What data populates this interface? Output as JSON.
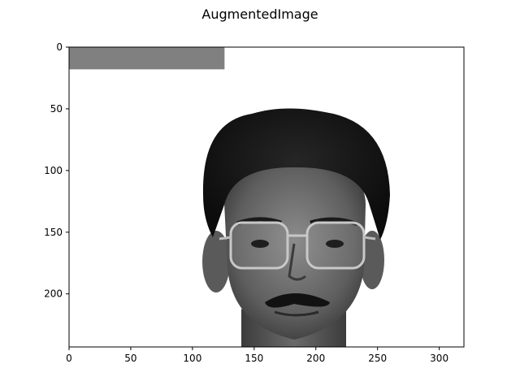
{
  "figure": {
    "title": "AugmentedImage"
  },
  "image_plot": {
    "x_ticks": [
      "0",
      "50",
      "100",
      "150",
      "200",
      "250",
      "300"
    ],
    "y_ticks": [
      "0",
      "50",
      "100",
      "150",
      "200"
    ],
    "xlim": [
      0,
      320
    ],
    "ylim": [
      243,
      0
    ],
    "occlusion_patch": {
      "x_range": [
        0,
        126
      ],
      "y_range": [
        0,
        18
      ],
      "color": "#808080"
    },
    "face_description_colors": {
      "hair": "#141414",
      "skin": "#7a7a7a",
      "skin_dark": "#4a4a4a",
      "background": "#ffffff"
    }
  }
}
